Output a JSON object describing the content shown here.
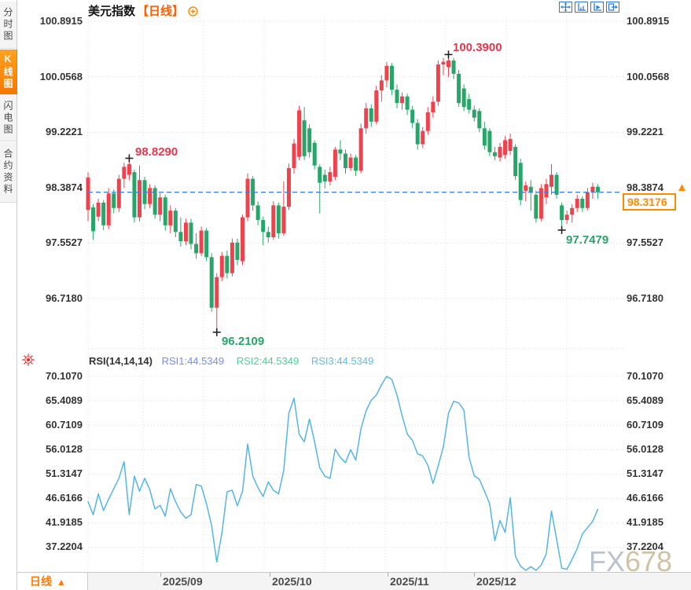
{
  "header": {
    "title": "美元指数",
    "period_tag": "【日线】"
  },
  "sidebar": {
    "tabs": [
      {
        "label": "分时图"
      },
      {
        "label": "K线图"
      },
      {
        "label": "闪电图"
      },
      {
        "label": "合约资料"
      }
    ],
    "selected": "K线图"
  },
  "price_axis": {
    "labels": [
      "100.8915",
      "100.0568",
      "99.2221",
      "98.3874",
      "97.5527",
      "96.7180"
    ]
  },
  "rsi_axis": {
    "labels": [
      "70.1070",
      "65.4089",
      "60.7109",
      "56.0128",
      "51.3147",
      "46.6166",
      "41.9185",
      "37.2204"
    ]
  },
  "annotations": {
    "high_left": "98.8290",
    "high_top": "100.3900",
    "low_mid": "96.2109",
    "low_right": "97.7479"
  },
  "current_price": {
    "value": "98.3176",
    "arrow": "▲"
  },
  "rsi_header": {
    "name": "RSI(14,14,14)",
    "rsi1": "RSI1:44.5349",
    "rsi2": "RSI2:44.5349",
    "rsi3": "RSI3:44.5349"
  },
  "bottom_bar": {
    "period_label": "日线",
    "period_arrow": "▲",
    "x_labels": [
      "2025/09",
      "2025/10",
      "2025/11",
      "2025/12"
    ]
  },
  "watermark": {
    "part1": "FX",
    "part2": "678"
  },
  "colors": {
    "up": "#ee424d",
    "down": "#28a669",
    "rsi_line": "#55b5e5",
    "dash_line": "#3f86d9",
    "accent": "#ff8a00"
  },
  "chart_data": [
    {
      "type": "candlestick",
      "title": "美元指数 日线",
      "ylim": [
        95.97,
        100.97
      ],
      "y_ticks": [
        100.8915,
        100.0568,
        99.2221,
        98.3874,
        97.5527,
        96.718
      ],
      "x_labels": [
        "2025/09",
        "2025/10",
        "2025/11",
        "2025/12"
      ],
      "current_price": 98.3176,
      "annotations": [
        {
          "text": "98.8290",
          "index": 8,
          "price": 98.829,
          "type": "high"
        },
        {
          "text": "100.3900",
          "index": 70,
          "price": 100.39,
          "type": "high"
        },
        {
          "text": "96.2109",
          "index": 25,
          "price": 96.2109,
          "type": "low"
        },
        {
          "text": "97.7479",
          "index": 92,
          "price": 97.7479,
          "type": "low"
        }
      ],
      "ohlc": [
        [
          98.05,
          98.62,
          97.88,
          98.54
        ],
        [
          98.09,
          98.14,
          97.6,
          97.73
        ],
        [
          97.95,
          98.22,
          97.88,
          98.16
        ],
        [
          98.16,
          98.2,
          97.75,
          97.82
        ],
        [
          97.82,
          98.38,
          97.76,
          98.3
        ],
        [
          98.3,
          98.36,
          98.0,
          98.08
        ],
        [
          98.08,
          98.58,
          98.02,
          98.52
        ],
        [
          98.52,
          98.76,
          98.38,
          98.7
        ],
        [
          98.58,
          98.829,
          98.5,
          98.74
        ],
        [
          98.62,
          98.66,
          97.86,
          97.94
        ],
        [
          97.94,
          98.72,
          97.88,
          98.5
        ],
        [
          98.5,
          98.55,
          98.06,
          98.14
        ],
        [
          98.14,
          98.44,
          98.08,
          98.38
        ],
        [
          98.38,
          98.42,
          97.92,
          97.98
        ],
        [
          97.98,
          98.3,
          97.88,
          98.24
        ],
        [
          98.24,
          98.28,
          97.74,
          97.82
        ],
        [
          97.82,
          98.12,
          97.7,
          98.04
        ],
        [
          98.04,
          98.08,
          97.64,
          97.72
        ],
        [
          97.72,
          97.94,
          97.5,
          97.58
        ],
        [
          97.58,
          97.92,
          97.52,
          97.86
        ],
        [
          97.86,
          97.92,
          97.46,
          97.54
        ],
        [
          97.54,
          97.7,
          97.32,
          97.4
        ],
        [
          97.4,
          97.8,
          97.36,
          97.74
        ],
        [
          97.74,
          97.78,
          97.28,
          97.34
        ],
        [
          97.34,
          97.4,
          96.52,
          96.58
        ],
        [
          96.58,
          97.1,
          96.2109,
          97.04
        ],
        [
          97.04,
          97.42,
          96.98,
          97.36
        ],
        [
          97.36,
          97.44,
          97.02,
          97.1
        ],
        [
          97.1,
          97.62,
          97.05,
          97.56
        ],
        [
          97.56,
          97.62,
          97.22,
          97.3
        ],
        [
          97.28,
          97.98,
          97.22,
          97.94
        ],
        [
          97.94,
          98.6,
          97.88,
          98.52
        ],
        [
          98.52,
          98.56,
          98.04,
          98.12
        ],
        [
          98.12,
          98.18,
          97.82,
          97.9
        ],
        [
          97.9,
          97.95,
          97.52,
          97.72
        ],
        [
          97.72,
          97.8,
          97.56,
          97.64
        ],
        [
          97.64,
          98.18,
          97.6,
          98.12
        ],
        [
          98.12,
          98.16,
          97.62,
          97.7
        ],
        [
          97.7,
          98.48,
          97.66,
          98.1
        ],
        [
          98.1,
          98.75,
          98.05,
          98.68
        ],
        [
          98.68,
          99.12,
          98.6,
          99.05
        ],
        [
          98.85,
          99.62,
          98.8,
          99.55
        ],
        [
          99.4,
          99.6,
          98.8,
          98.86
        ],
        [
          99.28,
          99.34,
          98.84,
          98.92
        ],
        [
          99.06,
          99.1,
          98.66,
          98.72
        ],
        [
          98.7,
          98.74,
          98.0,
          98.46
        ],
        [
          98.58,
          98.66,
          98.38,
          98.48
        ],
        [
          98.48,
          98.7,
          98.42,
          98.62
        ],
        [
          98.55,
          99.0,
          98.5,
          98.96
        ],
        [
          98.96,
          99.1,
          98.8,
          98.9
        ],
        [
          98.9,
          98.96,
          98.6,
          98.68
        ],
        [
          98.68,
          98.9,
          98.64,
          98.84
        ],
        [
          98.84,
          98.88,
          98.56,
          98.64
        ],
        [
          98.64,
          99.35,
          98.6,
          99.28
        ],
        [
          99.28,
          99.66,
          99.2,
          99.58
        ],
        [
          99.58,
          99.64,
          99.3,
          99.38
        ],
        [
          99.38,
          99.92,
          99.34,
          99.85
        ],
        [
          99.85,
          100.08,
          99.68,
          100.0
        ],
        [
          100.0,
          100.28,
          99.9,
          100.22
        ],
        [
          100.22,
          100.26,
          99.78,
          99.86
        ],
        [
          99.86,
          99.94,
          99.58,
          99.66
        ],
        [
          99.66,
          99.82,
          99.56,
          99.76
        ],
        [
          99.76,
          99.8,
          99.48,
          99.56
        ],
        [
          99.56,
          99.62,
          99.28,
          99.36
        ],
        [
          99.36,
          99.42,
          98.96,
          99.04
        ],
        [
          99.04,
          99.3,
          98.98,
          99.24
        ],
        [
          99.24,
          99.6,
          99.18,
          99.52
        ],
        [
          99.52,
          99.76,
          99.44,
          99.68
        ],
        [
          99.68,
          100.3,
          99.62,
          100.24
        ],
        [
          100.24,
          100.34,
          100.08,
          100.28
        ],
        [
          100.2,
          100.39,
          100.05,
          100.3
        ],
        [
          100.3,
          100.34,
          100.02,
          100.1
        ],
        [
          100.1,
          100.16,
          99.6,
          99.66
        ],
        [
          99.88,
          99.94,
          99.54,
          99.6
        ],
        [
          99.72,
          99.8,
          99.5,
          99.56
        ],
        [
          99.56,
          99.62,
          99.38,
          99.44
        ],
        [
          99.54,
          99.58,
          99.22,
          99.28
        ],
        [
          99.28,
          99.38,
          98.96,
          99.02
        ],
        [
          99.24,
          99.28,
          98.86,
          98.92
        ],
        [
          98.92,
          99.0,
          98.8,
          98.86
        ],
        [
          98.84,
          99.06,
          98.78,
          99.0
        ],
        [
          98.88,
          99.16,
          98.82,
          99.1
        ],
        [
          98.94,
          99.2,
          98.88,
          99.12
        ],
        [
          99.0,
          99.04,
          98.5,
          98.56
        ],
        [
          98.76,
          98.82,
          98.12,
          98.2
        ],
        [
          98.34,
          98.48,
          98.18,
          98.42
        ],
        [
          98.4,
          98.5,
          98.04,
          98.32
        ],
        [
          98.28,
          98.34,
          97.86,
          97.92
        ],
        [
          97.92,
          98.44,
          97.88,
          98.38
        ],
        [
          98.24,
          98.52,
          98.14,
          98.44
        ],
        [
          98.4,
          98.74,
          98.28,
          98.58
        ],
        [
          98.58,
          98.62,
          98.22,
          98.28
        ],
        [
          98.12,
          98.16,
          97.7479,
          97.9
        ],
        [
          97.9,
          98.04,
          97.84,
          97.98
        ],
        [
          97.98,
          98.14,
          97.86,
          98.08
        ],
        [
          98.08,
          98.28,
          98.02,
          98.22
        ],
        [
          98.22,
          98.26,
          98.02,
          98.08
        ],
        [
          98.08,
          98.38,
          98.04,
          98.32
        ],
        [
          98.32,
          98.46,
          98.22,
          98.4
        ],
        [
          98.4,
          98.44,
          98.22,
          98.3176
        ]
      ]
    },
    {
      "type": "line",
      "name": "RSI(14,14,14)",
      "ylim": [
        31.5,
        74.5
      ],
      "y_ticks": [
        70.107,
        65.4089,
        60.7109,
        56.0128,
        51.3147,
        46.6166,
        41.9185,
        37.2204
      ],
      "rsi1": 44.5349,
      "rsi2": 44.5349,
      "rsi3": 44.5349,
      "values": [
        46.0,
        43.5,
        47.5,
        44.3,
        46.5,
        48.5,
        50.5,
        53.7,
        43.5,
        50.9,
        48.0,
        50.5,
        48.3,
        44.6,
        45.3,
        43.2,
        48.5,
        46.0,
        44.0,
        42.8,
        43.5,
        49.3,
        49.0,
        45.6,
        41.4,
        34.4,
        40.0,
        47.9,
        48.2,
        45.2,
        48.0,
        57.1,
        50.9,
        48.7,
        47.0,
        49.8,
        48.2,
        47.5,
        52.0,
        63.0,
        65.9,
        59.0,
        57.5,
        61.9,
        57.5,
        52.5,
        50.9,
        50.5,
        56.1,
        54.5,
        53.5,
        56.0,
        54.0,
        60.0,
        63.5,
        65.5,
        66.5,
        68.5,
        70.107,
        69.5,
        66.5,
        62.5,
        59.0,
        57.8,
        55.2,
        54.8,
        53.0,
        49.5,
        52.9,
        56.5,
        63.0,
        65.3,
        65.0,
        63.6,
        54.5,
        51.0,
        50.3,
        48.0,
        45.6,
        38.5,
        42.4,
        40.1,
        46.8,
        35.5,
        33.6,
        32.8,
        33.5,
        32.8,
        33.8,
        36.0,
        44.2,
        38.8,
        33.2,
        33.0,
        34.9,
        37.0,
        39.8,
        41.0,
        42.2,
        44.53
      ]
    }
  ]
}
